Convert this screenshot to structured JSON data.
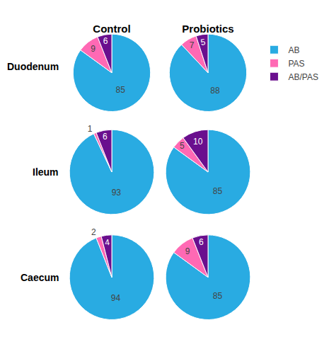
{
  "chart_data": [
    {
      "type": "pie",
      "title": "Control",
      "ylabel": "Duodenum",
      "categories": [
        "AB",
        "PAS",
        "AB/PAS"
      ],
      "values": [
        85,
        9,
        6
      ],
      "colors": [
        "#29ABE2",
        "#FF69B4",
        "#6A0F8E"
      ],
      "data_labels": true,
      "legend": "right"
    },
    {
      "type": "pie",
      "title": "Probiotics",
      "categories": [
        "AB",
        "PAS",
        "AB/PAS"
      ],
      "values": [
        88,
        7,
        5
      ],
      "colors": [
        "#29ABE2",
        "#FF69B4",
        "#6A0F8E"
      ],
      "data_labels": true
    },
    {
      "type": "pie",
      "ylabel": "Ileum",
      "categories": [
        "AB",
        "PAS",
        "AB/PAS"
      ],
      "values": [
        93,
        1,
        6
      ],
      "colors": [
        "#29ABE2",
        "#FF69B4",
        "#6A0F8E"
      ],
      "data_labels": true
    },
    {
      "type": "pie",
      "categories": [
        "AB",
        "PAS",
        "AB/PAS"
      ],
      "values": [
        85,
        5,
        10
      ],
      "colors": [
        "#29ABE2",
        "#FF69B4",
        "#6A0F8E"
      ],
      "data_labels": true
    },
    {
      "type": "pie",
      "ylabel": "Caecum",
      "categories": [
        "AB",
        "PAS",
        "AB/PAS"
      ],
      "values": [
        94,
        2,
        4
      ],
      "colors": [
        "#29ABE2",
        "#FF69B4",
        "#6A0F8E"
      ],
      "data_labels": true
    },
    {
      "type": "pie",
      "categories": [
        "AB",
        "PAS",
        "AB/PAS"
      ],
      "values": [
        85,
        9,
        6
      ],
      "colors": [
        "#29ABE2",
        "#FF69B4",
        "#6A0F8E"
      ],
      "data_labels": true
    }
  ]
}
